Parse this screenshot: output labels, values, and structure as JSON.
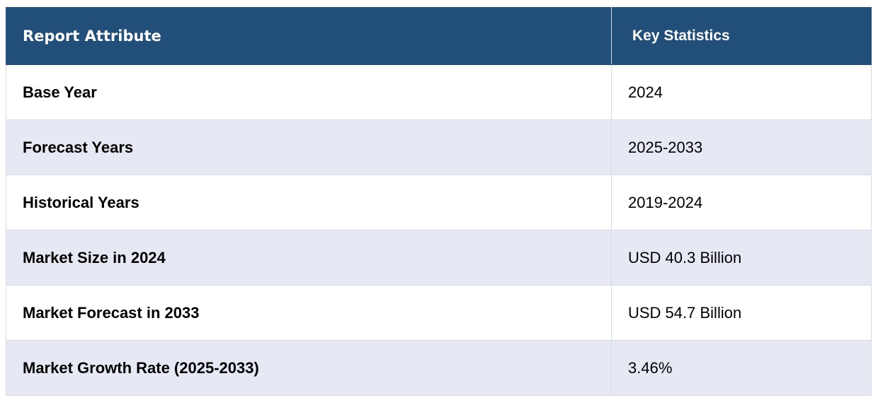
{
  "table": {
    "headers": {
      "attribute": "Report Attribute",
      "statistics": "Key Statistics"
    },
    "rows": [
      {
        "attribute": "Base Year",
        "value": "2024"
      },
      {
        "attribute": "Forecast Years",
        "value": "2025-2033"
      },
      {
        "attribute": "Historical Years",
        "value": "2019-2024"
      },
      {
        "attribute": "Market Size in 2024",
        "value": "USD 40.3 Billion"
      },
      {
        "attribute": "Market Forecast in 2033",
        "value": "USD 54.7 Billion"
      },
      {
        "attribute": "Market Growth Rate (2025-2033)",
        "value": "3.46%"
      }
    ]
  },
  "colors": {
    "header_background": "#214f79",
    "header_text": "#ffffff",
    "alt_row_background": "#e6e9f3",
    "row_background": "#ffffff",
    "border": "#d9dbe3"
  }
}
